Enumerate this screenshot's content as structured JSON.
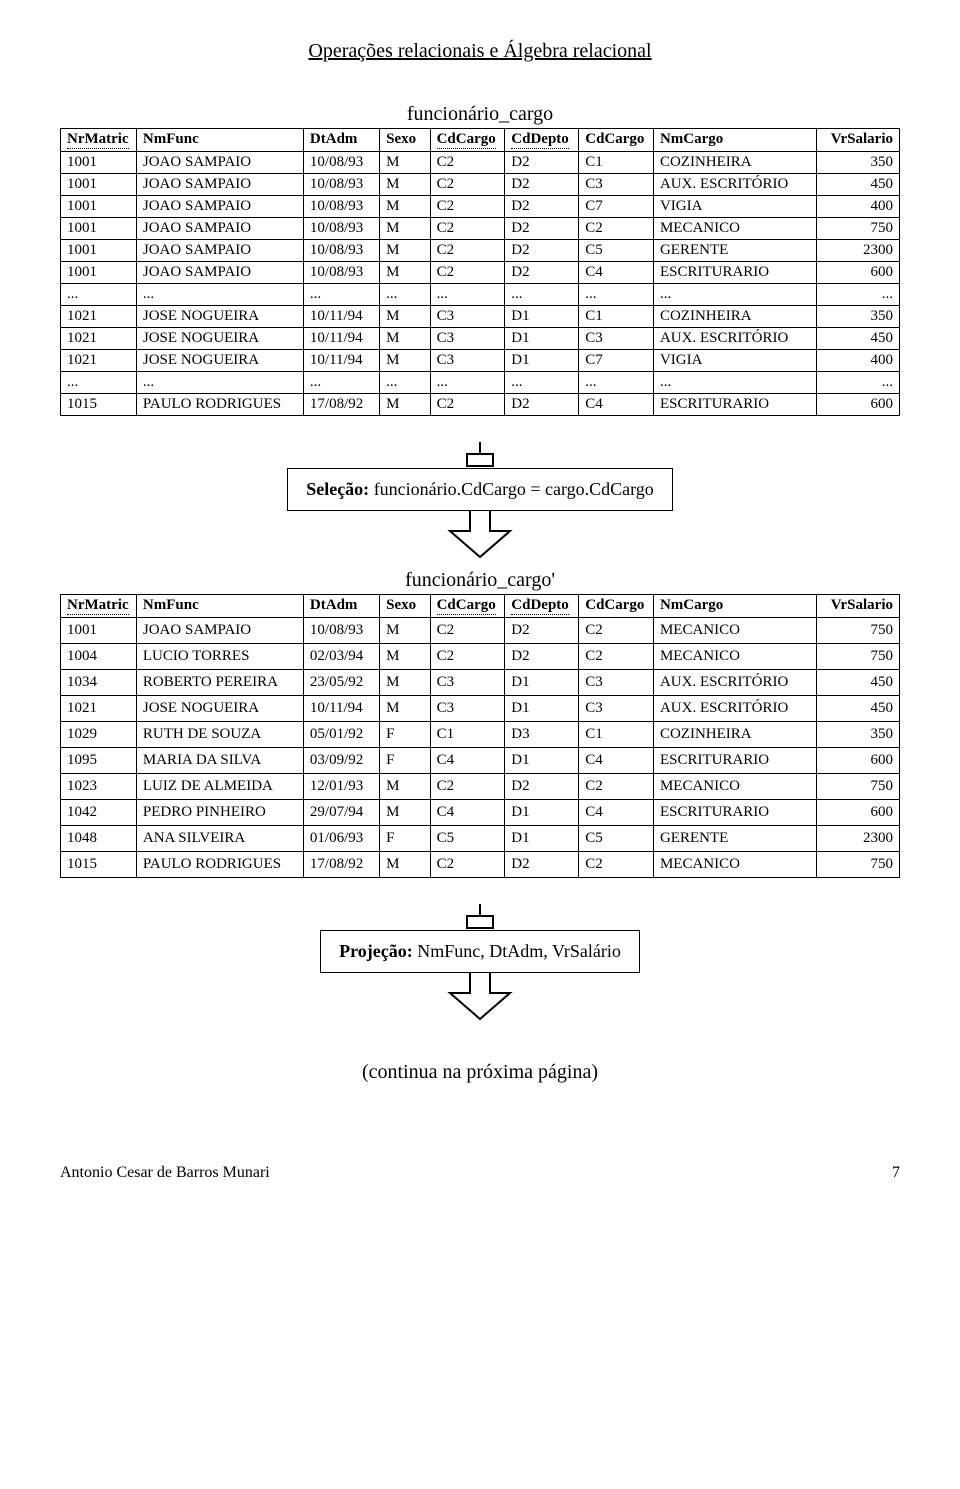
{
  "doc_title": "Operações relacionais e Álgebra relacional",
  "table1": {
    "title": "funcionário_cargo",
    "columns": [
      "NrMatric",
      "NmFunc",
      "DtAdm",
      "Sexo",
      "CdCargo",
      "CdDepto",
      "CdCargo",
      "NmCargo",
      "VrSalario"
    ],
    "rows": [
      [
        "1001",
        "JOAO SAMPAIO",
        "10/08/93",
        "M",
        "C2",
        "D2",
        "C1",
        "COZINHEIRA",
        "350"
      ],
      [
        "1001",
        "JOAO SAMPAIO",
        "10/08/93",
        "M",
        "C2",
        "D2",
        "C3",
        "AUX. ESCRITÓRIO",
        "450"
      ],
      [
        "1001",
        "JOAO SAMPAIO",
        "10/08/93",
        "M",
        "C2",
        "D2",
        "C7",
        "VIGIA",
        "400"
      ],
      [
        "1001",
        "JOAO SAMPAIO",
        "10/08/93",
        "M",
        "C2",
        "D2",
        "C2",
        "MECANICO",
        "750"
      ],
      [
        "1001",
        "JOAO SAMPAIO",
        "10/08/93",
        "M",
        "C2",
        "D2",
        "C5",
        "GERENTE",
        "2300"
      ],
      [
        "1001",
        "JOAO SAMPAIO",
        "10/08/93",
        "M",
        "C2",
        "D2",
        "C4",
        "ESCRITURARIO",
        "600"
      ],
      [
        "...",
        "...",
        "...",
        "...",
        "...",
        "...",
        "...",
        "...",
        "..."
      ],
      [
        "1021",
        "JOSE NOGUEIRA",
        "10/11/94",
        "M",
        "C3",
        "D1",
        "C1",
        "COZINHEIRA",
        "350"
      ],
      [
        "1021",
        "JOSE NOGUEIRA",
        "10/11/94",
        "M",
        "C3",
        "D1",
        "C3",
        "AUX. ESCRITÓRIO",
        "450"
      ],
      [
        "1021",
        "JOSE NOGUEIRA",
        "10/11/94",
        "M",
        "C3",
        "D1",
        "C7",
        "VIGIA",
        "400"
      ],
      [
        "...",
        "...",
        "...",
        "...",
        "...",
        "...",
        "...",
        "...",
        "..."
      ],
      [
        "1015",
        "PAULO RODRIGUES",
        "17/08/92",
        "M",
        "C2",
        "D2",
        "C4",
        "ESCRITURARIO",
        "600"
      ]
    ]
  },
  "op1_label": "Seleção: funcionário.CdCargo = cargo.CdCargo",
  "table2": {
    "title": "funcionário_cargo'",
    "columns": [
      "NrMatric",
      "NmFunc",
      "DtAdm",
      "Sexo",
      "CdCargo",
      "CdDepto",
      "CdCargo",
      "NmCargo",
      "VrSalario"
    ],
    "rows": [
      [
        "1001",
        "JOAO SAMPAIO",
        "10/08/93",
        "M",
        "C2",
        "D2",
        "C2",
        "MECANICO",
        "750"
      ],
      [
        "1004",
        "LUCIO TORRES",
        "02/03/94",
        "M",
        "C2",
        "D2",
        "C2",
        "MECANICO",
        "750"
      ],
      [
        "1034",
        "ROBERTO PEREIRA",
        "23/05/92",
        "M",
        "C3",
        "D1",
        "C3",
        "AUX. ESCRITÓRIO",
        "450"
      ],
      [
        "1021",
        "JOSE NOGUEIRA",
        "10/11/94",
        "M",
        "C3",
        "D1",
        "C3",
        "AUX. ESCRITÓRIO",
        "450"
      ],
      [
        "1029",
        "RUTH DE SOUZA",
        "05/01/92",
        "F",
        "C1",
        "D3",
        "C1",
        "COZINHEIRA",
        "350"
      ],
      [
        "1095",
        "MARIA DA SILVA",
        "03/09/92",
        "F",
        "C4",
        "D1",
        "C4",
        "ESCRITURARIO",
        "600"
      ],
      [
        "1023",
        "LUIZ DE ALMEIDA",
        "12/01/93",
        "M",
        "C2",
        "D2",
        "C2",
        "MECANICO",
        "750"
      ],
      [
        "1042",
        "PEDRO PINHEIRO",
        "29/07/94",
        "M",
        "C4",
        "D1",
        "C4",
        "ESCRITURARIO",
        "600"
      ],
      [
        "1048",
        "ANA SILVEIRA",
        "01/06/93",
        "F",
        "C5",
        "D1",
        "C5",
        "GERENTE",
        "2300"
      ],
      [
        "1015",
        "PAULO RODRIGUES",
        "17/08/92",
        "M",
        "C2",
        "D2",
        "C2",
        "MECANICO",
        "750"
      ]
    ]
  },
  "op2_label": "Projeção: NmFunc, DtAdm, VrSalário",
  "continue_text": "(continua na próxima página)",
  "footer_author": "Antonio Cesar de Barros Munari",
  "footer_page": "7",
  "col_widths": [
    "64px",
    "168px",
    "72px",
    "44px",
    "64px",
    "64px",
    "64px",
    "170px",
    "76px"
  ],
  "dotted_cols": [
    0,
    4,
    5
  ],
  "num_cols": [
    8
  ]
}
